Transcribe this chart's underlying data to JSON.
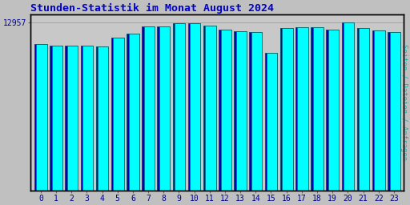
{
  "title": "Stunden-Statistik im Monat August 2024",
  "ylabel": "Seiten / Dateien / Anfragen",
  "ytick_value": 12957,
  "ytick_label": "12957",
  "categories": [
    0,
    1,
    2,
    3,
    4,
    5,
    6,
    7,
    8,
    9,
    10,
    11,
    12,
    13,
    14,
    15,
    16,
    17,
    18,
    19,
    20,
    21,
    22,
    23
  ],
  "values": [
    11280,
    11150,
    11150,
    11150,
    11100,
    11800,
    12100,
    12650,
    12680,
    12900,
    12900,
    12750,
    12400,
    12300,
    12250,
    10600,
    12550,
    12600,
    12600,
    12400,
    12957,
    12550,
    12350,
    12200
  ],
  "ymax": 13600,
  "bar_face_color": "#00FFFF",
  "bar_edge_color": "#007070",
  "bar_dark_color": "#0000AA",
  "bg_color": "#C0C0C0",
  "plot_bg_color": "#C8C8C8",
  "title_color": "#0000CC",
  "ylabel_color": "#00BBBB",
  "tick_label_color": "#00008B",
  "border_color": "#000000"
}
